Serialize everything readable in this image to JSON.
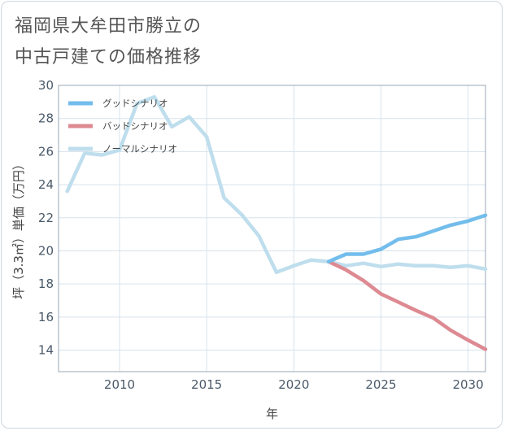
{
  "title": {
    "line1": "福岡県大牟田市勝立の",
    "line2": "中古戸建ての価格推移"
  },
  "chart_data": {
    "type": "line",
    "xlabel": "年",
    "ylabel": "坪（3.3㎡）単価（万円）",
    "xlim": [
      2006.5,
      2031
    ],
    "ylim": [
      12.7,
      30
    ],
    "xticks": [
      2010,
      2015,
      2020,
      2025,
      2030
    ],
    "yticks": [
      14,
      16,
      18,
      20,
      22,
      24,
      26,
      28,
      30
    ],
    "grid": true,
    "legend_position": "top-left",
    "series": [
      {
        "name": "グッドシナリオ",
        "color": "#72bdec",
        "x": [
          2022,
          2023,
          2024,
          2025,
          2026,
          2027,
          2028,
          2029,
          2030,
          2031
        ],
        "y": [
          19.35,
          19.8,
          19.8,
          20.1,
          20.7,
          20.85,
          21.2,
          21.55,
          21.8,
          22.15
        ]
      },
      {
        "name": "バッドシナリオ",
        "color": "#dd8a92",
        "x": [
          2022,
          2023,
          2024,
          2025,
          2026,
          2027,
          2028,
          2029,
          2030,
          2031
        ],
        "y": [
          19.35,
          18.85,
          18.2,
          17.4,
          16.9,
          16.4,
          15.95,
          15.2,
          14.6,
          14.05
        ]
      },
      {
        "name": "ノーマルシナリオ",
        "color": "#bfdeed",
        "x": [
          2007,
          2008,
          2009,
          2010,
          2011,
          2012,
          2013,
          2014,
          2015,
          2016,
          2017,
          2018,
          2019,
          2020,
          2021,
          2022,
          2023,
          2024,
          2025,
          2026,
          2027,
          2028,
          2029,
          2030,
          2031
        ],
        "y": [
          23.6,
          25.9,
          25.8,
          26.1,
          28.9,
          29.3,
          27.5,
          28.1,
          26.9,
          23.2,
          22.2,
          20.9,
          18.7,
          19.1,
          19.45,
          19.35,
          19.1,
          19.25,
          19.05,
          19.2,
          19.1,
          19.1,
          19.0,
          19.1,
          18.9
        ]
      }
    ]
  }
}
